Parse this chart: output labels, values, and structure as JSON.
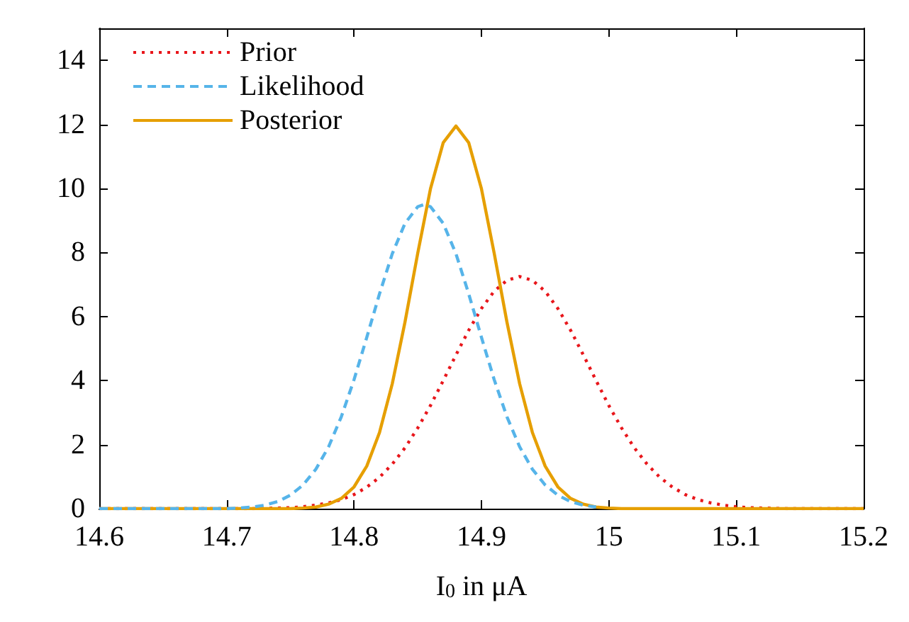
{
  "chart_data": {
    "type": "line",
    "xlabel": "I$_{0}$ in μA",
    "xlim": [
      14.6,
      15.2
    ],
    "xticks": [
      14.6,
      14.7,
      14.8,
      14.9,
      15,
      15.1,
      15.2
    ],
    "ylim": [
      0,
      15
    ],
    "yticks": [
      0,
      2,
      4,
      6,
      8,
      10,
      12,
      14
    ],
    "grid": false,
    "legend": "top left",
    "marker": "none",
    "series": [
      {
        "name": "Prior",
        "color": "#e8161b",
        "line_style": "dotted",
        "x": [
          14.6,
          14.72,
          14.73,
          14.75,
          14.76,
          14.77,
          14.78,
          14.79,
          14.8,
          14.81,
          14.82,
          14.83,
          14.84,
          14.85,
          14.86,
          14.87,
          14.88,
          14.89,
          14.9,
          14.91,
          14.92,
          14.93,
          14.94,
          14.95,
          14.96,
          14.97,
          14.98,
          14.99,
          15.0,
          15.01,
          15.02,
          15.03,
          15.04,
          15.05,
          15.06,
          15.07,
          15.08,
          15.09,
          15.1,
          15.11,
          15.13,
          15.14,
          15.2
        ],
        "values": [
          0,
          0,
          0.01,
          0.03,
          0.06,
          0.11,
          0.18,
          0.28,
          0.44,
          0.67,
          0.98,
          1.39,
          1.9,
          2.52,
          3.22,
          4.0,
          4.8,
          5.57,
          6.25,
          6.79,
          7.13,
          7.25,
          7.13,
          6.79,
          6.25,
          5.57,
          4.8,
          4.0,
          3.22,
          2.52,
          1.9,
          1.39,
          0.98,
          0.67,
          0.44,
          0.28,
          0.18,
          0.11,
          0.06,
          0.03,
          0.01,
          0,
          0
        ]
      },
      {
        "name": "Likelihood",
        "color": "#56b4e9",
        "line_style": "dashed",
        "x": [
          14.6,
          14.7,
          14.71,
          14.72,
          14.73,
          14.74,
          14.75,
          14.76,
          14.77,
          14.78,
          14.79,
          14.8,
          14.81,
          14.82,
          14.83,
          14.84,
          14.85,
          14.855,
          14.86,
          14.87,
          14.88,
          14.89,
          14.9,
          14.91,
          14.92,
          14.93,
          14.94,
          14.95,
          14.96,
          14.97,
          14.98,
          14.99
        ],
        "values": [
          0,
          0,
          0.02,
          0.05,
          0.11,
          0.22,
          0.42,
          0.74,
          1.23,
          1.93,
          2.87,
          4.03,
          5.35,
          6.71,
          7.96,
          8.91,
          9.43,
          9.5,
          9.43,
          8.91,
          7.96,
          6.71,
          5.35,
          4.03,
          2.87,
          1.93,
          1.23,
          0.74,
          0.42,
          0.22,
          0.11,
          0.05
        ]
      },
      {
        "name": "Posterior",
        "color": "#e69f00",
        "line_style": "solid",
        "x": [
          14.6,
          14.75,
          14.76,
          14.77,
          14.78,
          14.79,
          14.8,
          14.81,
          14.82,
          14.83,
          14.84,
          14.85,
          14.86,
          14.87,
          14.88,
          14.89,
          14.9,
          14.91,
          14.92,
          14.93,
          14.94,
          14.95,
          14.96,
          14.97,
          14.98,
          14.99,
          15.0,
          15.01,
          15.2
        ],
        "values": [
          0,
          0,
          0.02,
          0.05,
          0.14,
          0.32,
          0.68,
          1.33,
          2.38,
          3.9,
          5.83,
          7.98,
          9.99,
          11.43,
          11.95,
          11.43,
          9.99,
          7.98,
          5.83,
          3.9,
          2.38,
          1.33,
          0.68,
          0.32,
          0.14,
          0.05,
          0.02,
          0,
          0
        ]
      }
    ]
  }
}
